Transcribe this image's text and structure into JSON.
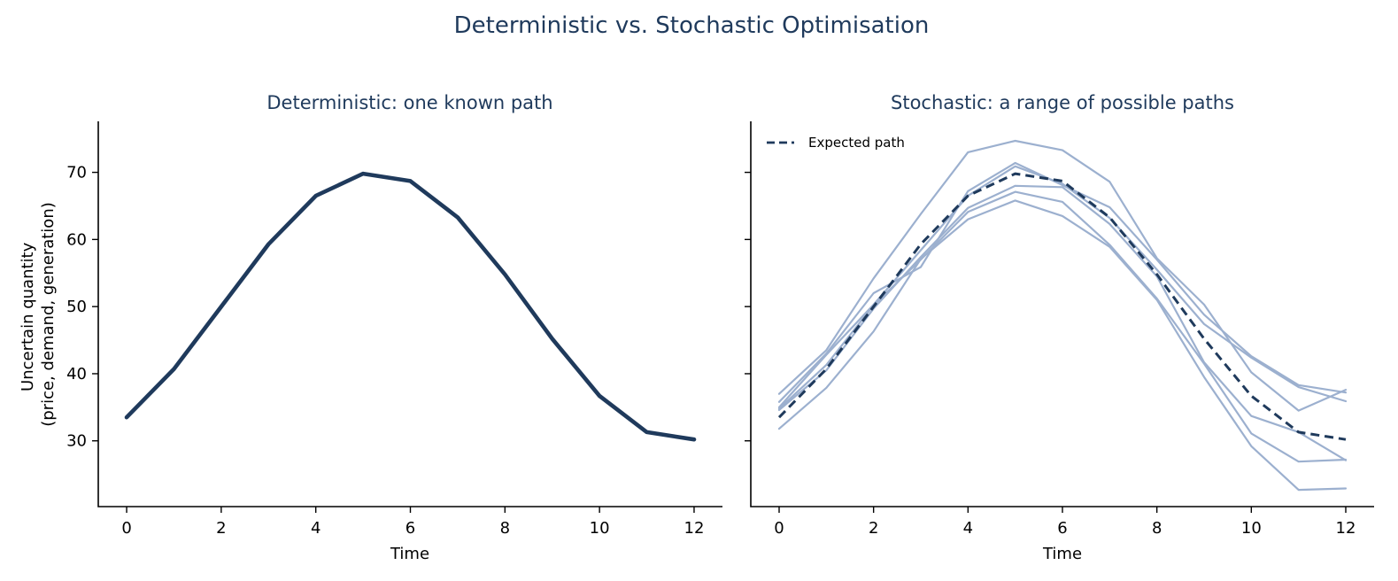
{
  "title": "Deterministic vs. Stochastic Optimisation",
  "colors": {
    "dark": "#1f3a5c",
    "light": "#9cb0cf"
  },
  "chart_data": [
    {
      "type": "line",
      "title": "Deterministic: one known path",
      "xlabel": "Time",
      "ylabel": [
        "Uncertain quantity",
        "(price, demand, generation)"
      ],
      "xlim": [
        -0.6,
        12.6
      ],
      "ylim": [
        20.2,
        77.6
      ],
      "xticks": [
        0,
        2,
        4,
        6,
        8,
        10,
        12
      ],
      "yticks": [
        30,
        40,
        50,
        60,
        70
      ],
      "grid": false,
      "x": [
        0,
        1,
        2,
        3,
        4,
        5,
        6,
        7,
        8,
        9,
        10,
        11,
        12
      ],
      "series": [
        {
          "values": [
            33.5,
            40.7,
            50.0,
            59.3,
            66.5,
            69.8,
            68.7,
            63.3,
            54.8,
            45.2,
            36.7,
            31.3,
            30.2
          ],
          "style": "solid"
        }
      ]
    },
    {
      "type": "line",
      "title": "Stochastic: a range of possible paths",
      "xlabel": "Time",
      "xlim": [
        -0.6,
        12.6
      ],
      "ylim": [
        20.2,
        77.6
      ],
      "xticks": [
        0,
        2,
        4,
        6,
        8,
        10,
        12
      ],
      "yticks": [
        30,
        40,
        50,
        60,
        70
      ],
      "grid": false,
      "legend_position": "upper-left",
      "x": [
        0,
        1,
        2,
        3,
        4,
        5,
        6,
        7,
        8,
        9,
        10,
        11,
        12
      ],
      "scenarios": [
        [
          37.0,
          43.5,
          54.2,
          63.8,
          73.0,
          74.7,
          73.3,
          68.6,
          57.2,
          50.3,
          40.2,
          34.5,
          37.6
        ],
        [
          35.8,
          43.0,
          52.0,
          55.9,
          67.2,
          71.4,
          68.1,
          64.8,
          57.0,
          48.8,
          42.6,
          38.3,
          37.2
        ],
        [
          35.0,
          42.8,
          50.3,
          58.4,
          66.5,
          70.9,
          68.3,
          63.2,
          55.5,
          47.4,
          42.4,
          38.0,
          35.9
        ],
        [
          34.6,
          40.5,
          49.7,
          57.4,
          64.7,
          68.0,
          67.8,
          62.3,
          54.5,
          41.7,
          33.7,
          31.3,
          27.1
        ],
        [
          34.8,
          41.3,
          50.2,
          57.0,
          64.1,
          67.1,
          65.6,
          59.2,
          51.2,
          41.5,
          31.1,
          26.9,
          27.2
        ],
        [
          31.8,
          37.9,
          46.3,
          57.1,
          63.0,
          65.8,
          63.5,
          58.9,
          51.0,
          39.5,
          29.2,
          22.7,
          22.9
        ]
      ],
      "series": [
        {
          "name": "Expected path",
          "values": [
            33.5,
            40.7,
            50.0,
            59.3,
            66.5,
            69.8,
            68.7,
            63.3,
            54.8,
            45.2,
            36.7,
            31.3,
            30.2
          ],
          "style": "dashed"
        }
      ]
    }
  ]
}
